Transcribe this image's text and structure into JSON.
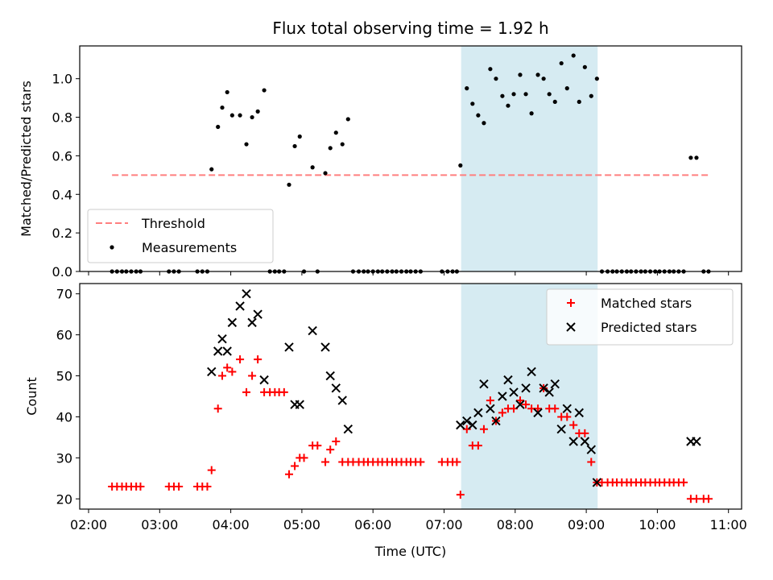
{
  "title": "Flux total observing time = 1.92 h",
  "colors": {
    "threshold": "#ff7f7f",
    "measurement": "#000000",
    "matched": "#ff0000",
    "predicted": "#000000",
    "highlight": "#add8e6"
  },
  "chart_data": [
    {
      "type": "scatter",
      "ylabel": "Matched/Predicted stars",
      "xlabel": "",
      "ylim": [
        0,
        1.17
      ],
      "yticks": [
        0.0,
        0.2,
        0.4,
        0.6,
        0.8,
        1.0
      ],
      "yticklabels": [
        "0.0",
        "0.2",
        "0.4",
        "0.6",
        "0.8",
        "1.0"
      ],
      "x_unit": "hours UTC",
      "xlim": [
        2.2,
        11.2
      ],
      "highlight_span": [
        7.24,
        9.16
      ],
      "legend_position": "lower left",
      "series": [
        {
          "name": "Threshold",
          "kind": "line",
          "style": "dashed",
          "x": [
            2.33,
            10.75
          ],
          "y": [
            0.5,
            0.5
          ]
        },
        {
          "name": "Measurements",
          "kind": "dots",
          "points": [
            [
              2.33,
              0
            ],
            [
              2.4,
              0
            ],
            [
              2.47,
              0
            ],
            [
              2.53,
              0
            ],
            [
              2.6,
              0
            ],
            [
              2.67,
              0
            ],
            [
              2.73,
              0
            ],
            [
              3.13,
              0
            ],
            [
              3.2,
              0
            ],
            [
              3.27,
              0
            ],
            [
              3.53,
              0
            ],
            [
              3.6,
              0
            ],
            [
              3.67,
              0
            ],
            [
              3.73,
              0.53
            ],
            [
              3.82,
              0.75
            ],
            [
              3.88,
              0.85
            ],
            [
              3.95,
              0.93
            ],
            [
              4.02,
              0.81
            ],
            [
              4.13,
              0.81
            ],
            [
              4.22,
              0.66
            ],
            [
              4.3,
              0.8
            ],
            [
              4.38,
              0.83
            ],
            [
              4.47,
              0.94
            ],
            [
              4.55,
              0
            ],
            [
              4.62,
              0
            ],
            [
              4.68,
              0
            ],
            [
              4.75,
              0
            ],
            [
              4.82,
              0.45
            ],
            [
              4.9,
              0.65
            ],
            [
              4.97,
              0.7
            ],
            [
              5.03,
              0
            ],
            [
              5.15,
              0.54
            ],
            [
              5.22,
              0
            ],
            [
              5.33,
              0.51
            ],
            [
              5.4,
              0.64
            ],
            [
              5.48,
              0.72
            ],
            [
              5.57,
              0.66
            ],
            [
              5.65,
              0.79
            ],
            [
              5.72,
              0
            ],
            [
              5.8,
              0
            ],
            [
              5.87,
              0
            ],
            [
              5.93,
              0
            ],
            [
              6.0,
              0
            ],
            [
              6.07,
              0
            ],
            [
              6.13,
              0
            ],
            [
              6.2,
              0
            ],
            [
              6.27,
              0
            ],
            [
              6.33,
              0
            ],
            [
              6.4,
              0
            ],
            [
              6.47,
              0
            ],
            [
              6.53,
              0
            ],
            [
              6.6,
              0
            ],
            [
              6.67,
              0
            ],
            [
              6.97,
              0
            ],
            [
              7.05,
              0
            ],
            [
              7.12,
              0
            ],
            [
              7.18,
              0
            ],
            [
              7.23,
              0.55
            ],
            [
              7.32,
              0.95
            ],
            [
              7.4,
              0.87
            ],
            [
              7.48,
              0.81
            ],
            [
              7.56,
              0.77
            ],
            [
              7.65,
              1.05
            ],
            [
              7.73,
              1.0
            ],
            [
              7.82,
              0.91
            ],
            [
              7.9,
              0.86
            ],
            [
              7.98,
              0.92
            ],
            [
              8.07,
              1.02
            ],
            [
              8.15,
              0.92
            ],
            [
              8.23,
              0.82
            ],
            [
              8.32,
              1.02
            ],
            [
              8.4,
              1.0
            ],
            [
              8.48,
              0.92
            ],
            [
              8.56,
              0.88
            ],
            [
              8.65,
              1.08
            ],
            [
              8.73,
              0.95
            ],
            [
              8.82,
              1.12
            ],
            [
              8.9,
              0.88
            ],
            [
              8.98,
              1.06
            ],
            [
              9.07,
              0.91
            ],
            [
              9.15,
              1.0
            ],
            [
              9.22,
              0
            ],
            [
              9.3,
              0
            ],
            [
              9.37,
              0
            ],
            [
              9.43,
              0
            ],
            [
              9.5,
              0
            ],
            [
              9.57,
              0
            ],
            [
              9.63,
              0
            ],
            [
              9.7,
              0
            ],
            [
              9.77,
              0
            ],
            [
              9.83,
              0
            ],
            [
              9.9,
              0
            ],
            [
              9.97,
              0
            ],
            [
              10.03,
              0
            ],
            [
              10.1,
              0
            ],
            [
              10.17,
              0
            ],
            [
              10.23,
              0
            ],
            [
              10.3,
              0
            ],
            [
              10.37,
              0
            ],
            [
              10.47,
              0.59
            ],
            [
              10.55,
              0.59
            ],
            [
              10.65,
              0
            ],
            [
              10.72,
              0
            ]
          ]
        }
      ]
    },
    {
      "type": "scatter",
      "ylabel": "Count",
      "xlabel": "Time (UTC)",
      "ylim": [
        17.5,
        72.5
      ],
      "yticks": [
        20,
        30,
        40,
        50,
        60,
        70
      ],
      "yticklabels": [
        "20",
        "30",
        "40",
        "50",
        "60",
        "70"
      ],
      "xlim": [
        2.2,
        11.2
      ],
      "xticks": [
        2,
        3,
        4,
        5,
        6,
        7,
        8,
        9,
        10,
        11
      ],
      "xticklabels": [
        "02:00",
        "03:00",
        "04:00",
        "05:00",
        "06:00",
        "07:00",
        "08:00",
        "09:00",
        "10:00",
        "11:00"
      ],
      "highlight_span": [
        7.24,
        9.16
      ],
      "legend_position": "upper right",
      "series": [
        {
          "name": "Matched stars",
          "kind": "plus",
          "points": [
            [
              2.33,
              23
            ],
            [
              2.4,
              23
            ],
            [
              2.47,
              23
            ],
            [
              2.53,
              23
            ],
            [
              2.6,
              23
            ],
            [
              2.67,
              23
            ],
            [
              2.73,
              23
            ],
            [
              3.13,
              23
            ],
            [
              3.2,
              23
            ],
            [
              3.27,
              23
            ],
            [
              3.53,
              23
            ],
            [
              3.6,
              23
            ],
            [
              3.67,
              23
            ],
            [
              3.73,
              27
            ],
            [
              3.82,
              42
            ],
            [
              3.88,
              50
            ],
            [
              3.95,
              52
            ],
            [
              4.02,
              51
            ],
            [
              4.13,
              54
            ],
            [
              4.22,
              46
            ],
            [
              4.3,
              50
            ],
            [
              4.38,
              54
            ],
            [
              4.47,
              46
            ],
            [
              4.55,
              46
            ],
            [
              4.62,
              46
            ],
            [
              4.68,
              46
            ],
            [
              4.75,
              46
            ],
            [
              4.82,
              26
            ],
            [
              4.9,
              28
            ],
            [
              4.97,
              30
            ],
            [
              5.03,
              30
            ],
            [
              5.15,
              33
            ],
            [
              5.22,
              33
            ],
            [
              5.33,
              29
            ],
            [
              5.4,
              32
            ],
            [
              5.48,
              34
            ],
            [
              5.57,
              29
            ],
            [
              5.65,
              29
            ],
            [
              5.72,
              29
            ],
            [
              5.8,
              29
            ],
            [
              5.87,
              29
            ],
            [
              5.93,
              29
            ],
            [
              6.0,
              29
            ],
            [
              6.07,
              29
            ],
            [
              6.13,
              29
            ],
            [
              6.2,
              29
            ],
            [
              6.27,
              29
            ],
            [
              6.33,
              29
            ],
            [
              6.4,
              29
            ],
            [
              6.47,
              29
            ],
            [
              6.53,
              29
            ],
            [
              6.6,
              29
            ],
            [
              6.67,
              29
            ],
            [
              6.97,
              29
            ],
            [
              7.05,
              29
            ],
            [
              7.12,
              29
            ],
            [
              7.18,
              29
            ],
            [
              7.23,
              21
            ],
            [
              7.32,
              37
            ],
            [
              7.4,
              33
            ],
            [
              7.48,
              33
            ],
            [
              7.56,
              37
            ],
            [
              7.65,
              44
            ],
            [
              7.73,
              39
            ],
            [
              7.82,
              41
            ],
            [
              7.9,
              42
            ],
            [
              7.98,
              42
            ],
            [
              8.07,
              44
            ],
            [
              8.15,
              43
            ],
            [
              8.23,
              42
            ],
            [
              8.32,
              42
            ],
            [
              8.4,
              47
            ],
            [
              8.48,
              42
            ],
            [
              8.56,
              42
            ],
            [
              8.65,
              40
            ],
            [
              8.73,
              40
            ],
            [
              8.82,
              38
            ],
            [
              8.9,
              36
            ],
            [
              8.98,
              36
            ],
            [
              9.07,
              29
            ],
            [
              9.15,
              24
            ],
            [
              9.22,
              24
            ],
            [
              9.3,
              24
            ],
            [
              9.37,
              24
            ],
            [
              9.43,
              24
            ],
            [
              9.5,
              24
            ],
            [
              9.57,
              24
            ],
            [
              9.63,
              24
            ],
            [
              9.7,
              24
            ],
            [
              9.77,
              24
            ],
            [
              9.83,
              24
            ],
            [
              9.9,
              24
            ],
            [
              9.97,
              24
            ],
            [
              10.03,
              24
            ],
            [
              10.1,
              24
            ],
            [
              10.17,
              24
            ],
            [
              10.23,
              24
            ],
            [
              10.3,
              24
            ],
            [
              10.37,
              24
            ],
            [
              10.47,
              20
            ],
            [
              10.55,
              20
            ],
            [
              10.65,
              20
            ],
            [
              10.72,
              20
            ]
          ]
        },
        {
          "name": "Predicted stars",
          "kind": "cross",
          "points": [
            [
              3.73,
              51
            ],
            [
              3.82,
              56
            ],
            [
              3.88,
              59
            ],
            [
              3.95,
              56
            ],
            [
              4.02,
              63
            ],
            [
              4.13,
              67
            ],
            [
              4.22,
              70
            ],
            [
              4.3,
              63
            ],
            [
              4.38,
              65
            ],
            [
              4.47,
              49
            ],
            [
              4.82,
              57
            ],
            [
              4.9,
              43
            ],
            [
              4.97,
              43
            ],
            [
              5.15,
              61
            ],
            [
              5.33,
              57
            ],
            [
              5.4,
              50
            ],
            [
              5.48,
              47
            ],
            [
              5.57,
              44
            ],
            [
              5.65,
              37
            ],
            [
              7.23,
              38
            ],
            [
              7.32,
              39
            ],
            [
              7.4,
              38
            ],
            [
              7.48,
              41
            ],
            [
              7.56,
              48
            ],
            [
              7.65,
              42
            ],
            [
              7.73,
              39
            ],
            [
              7.82,
              45
            ],
            [
              7.9,
              49
            ],
            [
              7.98,
              46
            ],
            [
              8.07,
              43
            ],
            [
              8.15,
              47
            ],
            [
              8.23,
              51
            ],
            [
              8.32,
              41
            ],
            [
              8.4,
              47
            ],
            [
              8.48,
              46
            ],
            [
              8.56,
              48
            ],
            [
              8.65,
              37
            ],
            [
              8.73,
              42
            ],
            [
              8.82,
              34
            ],
            [
              8.9,
              41
            ],
            [
              8.98,
              34
            ],
            [
              9.07,
              32
            ],
            [
              9.15,
              24
            ],
            [
              10.47,
              34
            ],
            [
              10.55,
              34
            ]
          ]
        }
      ]
    }
  ]
}
